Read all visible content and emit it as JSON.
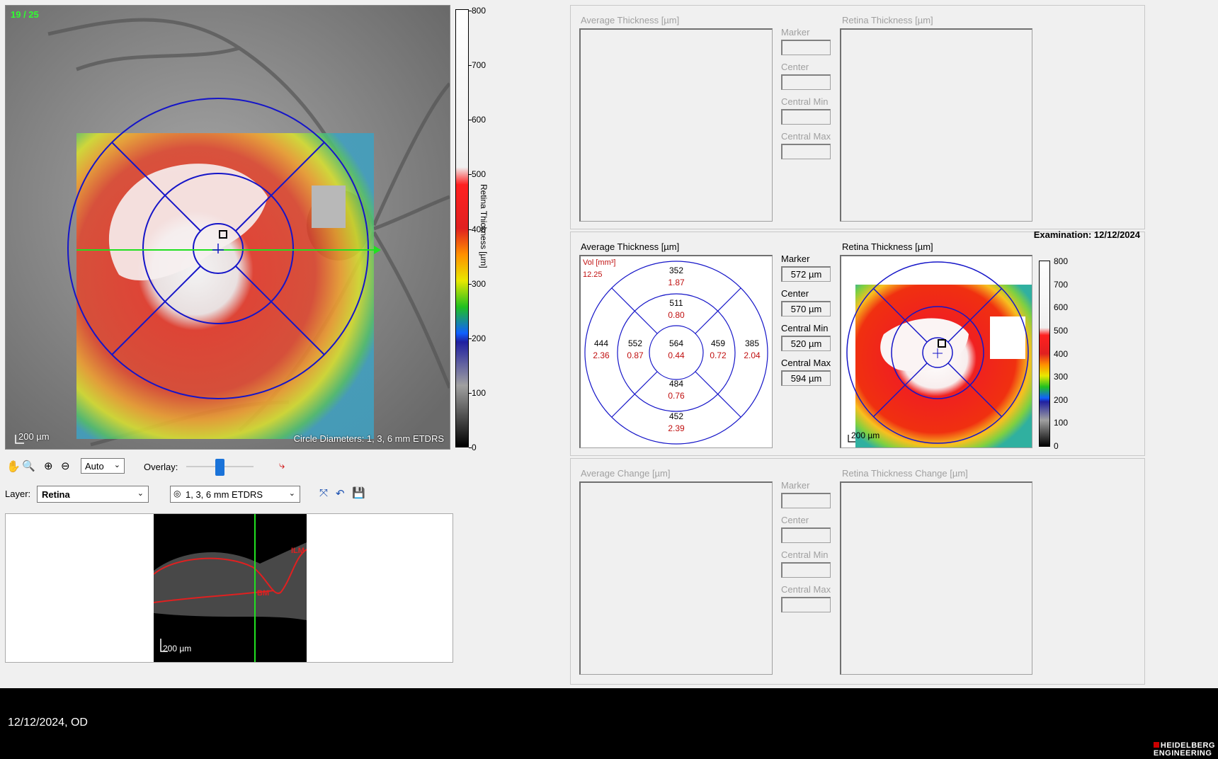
{
  "fundus": {
    "image_index": "19 / 25",
    "scale_label": "200 µm",
    "circle_label": "Circle Diameters: 1, 3, 6 mm ETDRS"
  },
  "colorbar": {
    "ticks": [
      "800",
      "700",
      "600",
      "500",
      "400",
      "300",
      "200",
      "100",
      "0"
    ],
    "label": "Retina Thickness [µm]"
  },
  "toolbar": {
    "zoom_select": "Auto",
    "overlay_label": "Overlay:",
    "overlay_value": 0.5,
    "layer_label": "Layer:",
    "layer_select": "Retina",
    "grid_select": "1, 3, 6 mm ETDRS"
  },
  "bscan": {
    "scale_label": "200 µm",
    "ilm_label": "ILM",
    "bm_label": "BM"
  },
  "panel_prev": {
    "avg_title": "Average Thickness [µm]",
    "map_title": "Retina Thickness [µm]",
    "fields": [
      {
        "label": "Marker",
        "value": ""
      },
      {
        "label": "Center",
        "value": ""
      },
      {
        "label": "Central Min",
        "value": ""
      },
      {
        "label": "Central Max",
        "value": ""
      }
    ]
  },
  "panel_current": {
    "avg_title": "Average Thickness [µm]",
    "map_title": "Retina Thickness [µm]",
    "exam_label": "Examination: 12/12/2024",
    "vol_label": "Vol [mm³]",
    "vol_value": "12.25",
    "etdrs": {
      "center": {
        "t": "564",
        "v": "0.44"
      },
      "inner_sup": {
        "t": "511",
        "v": "0.80"
      },
      "inner_inf": {
        "t": "484",
        "v": "0.76"
      },
      "inner_left": {
        "t": "552",
        "v": "0.87"
      },
      "inner_right": {
        "t": "459",
        "v": "0.72"
      },
      "outer_sup": {
        "t": "352",
        "v": "1.87"
      },
      "outer_inf": {
        "t": "452",
        "v": "2.39"
      },
      "outer_left": {
        "t": "444",
        "v": "2.36"
      },
      "outer_right": {
        "t": "385",
        "v": "2.04"
      }
    },
    "fields": [
      {
        "label": "Marker",
        "value": "572 µm"
      },
      {
        "label": "Center",
        "value": "570 µm"
      },
      {
        "label": "Central Min",
        "value": "520 µm"
      },
      {
        "label": "Central Max",
        "value": "594 µm"
      }
    ],
    "map_scale": "200 µm",
    "mini_ticks": [
      "800",
      "700",
      "600",
      "500",
      "400",
      "300",
      "200",
      "100",
      "0"
    ]
  },
  "panel_change": {
    "avg_title": "Average Change [µm]",
    "map_title": "Retina Thickness Change [µm]",
    "fields": [
      {
        "label": "Marker",
        "value": ""
      },
      {
        "label": "Center",
        "value": ""
      },
      {
        "label": "Central Min",
        "value": ""
      },
      {
        "label": "Central Max",
        "value": ""
      }
    ]
  },
  "footer": {
    "date": "12/12/2024, OD",
    "brand_line1": "HEIDELBERG",
    "brand_line2": "ENGINEERING"
  }
}
